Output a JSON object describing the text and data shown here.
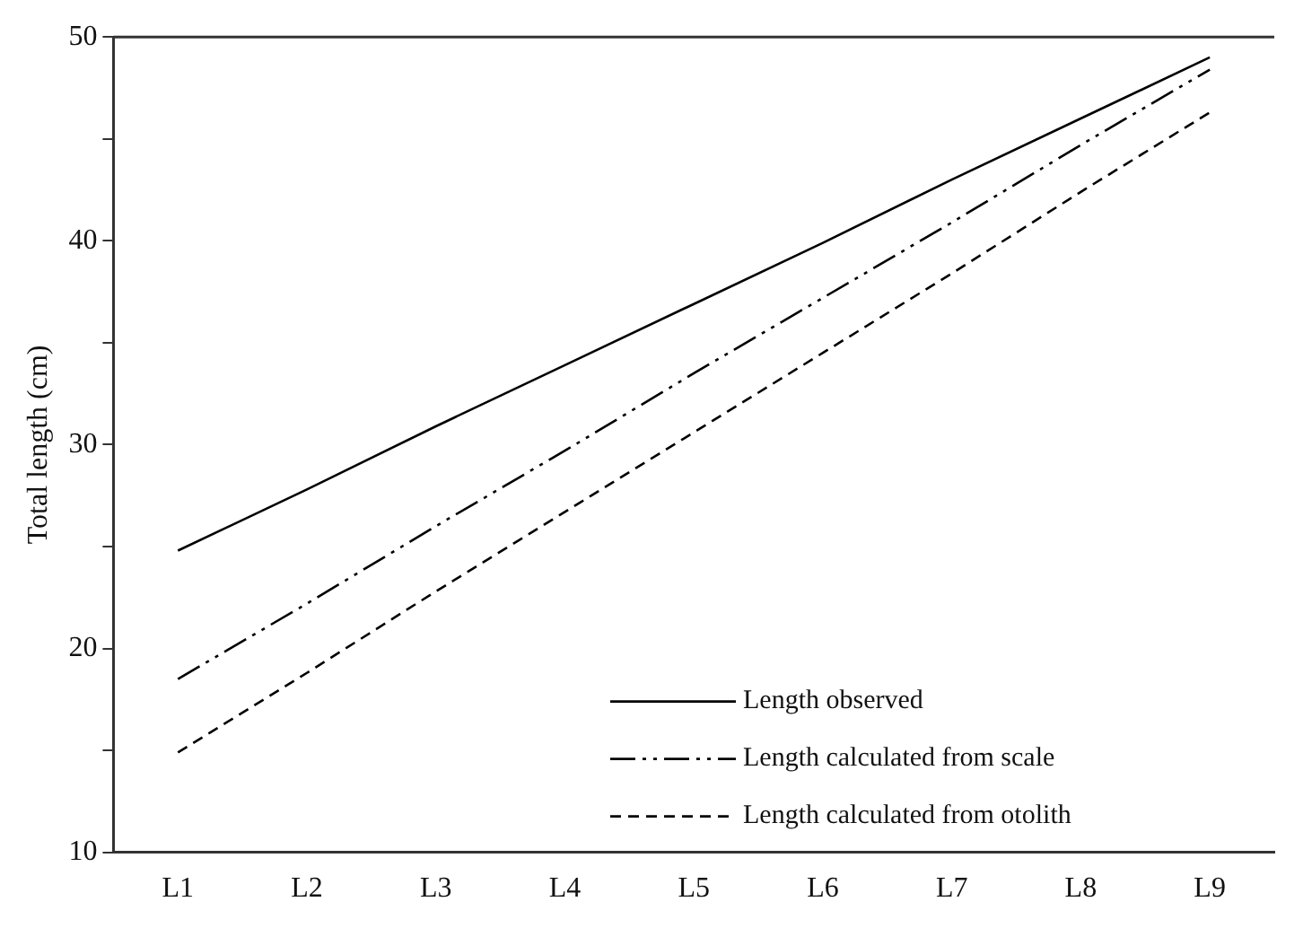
{
  "chart_data": {
    "type": "line",
    "ylabel": "Total length (cm)",
    "categories": [
      "L1",
      "L2",
      "L3",
      "L4",
      "L5",
      "L6",
      "L7",
      "L8",
      "L9"
    ],
    "series": [
      {
        "name": "Length observed",
        "color": "#000000",
        "line_style": "solid",
        "values": [
          24.8,
          27.8,
          30.9,
          33.9,
          36.9,
          39.9,
          43.0,
          46.0,
          49.0
        ]
      },
      {
        "name": "Length calculated from scale",
        "color": "#000000",
        "line_style": "dashdotdot",
        "values": [
          18.5,
          22.2,
          26.0,
          29.7,
          33.5,
          37.2,
          40.9,
          44.7,
          48.4
        ]
      },
      {
        "name": "Length calculated from otolith",
        "color": "#000000",
        "line_style": "dashed",
        "values": [
          14.9,
          18.8,
          22.8,
          26.7,
          30.6,
          34.5,
          38.4,
          42.4,
          46.3
        ]
      }
    ],
    "ylim": [
      10,
      50
    ],
    "yticks": [
      10,
      {
        "value": 15,
        "label": null
      },
      20,
      {
        "value": 25,
        "label": null
      },
      30,
      {
        "value": 35,
        "label": null
      },
      40,
      {
        "value": 45,
        "label": null
      },
      50
    ],
    "grid": false,
    "legend": "bottom right",
    "marker": "none"
  }
}
